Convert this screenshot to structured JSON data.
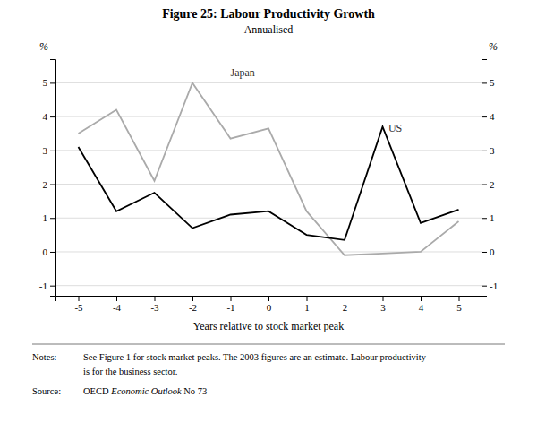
{
  "chart_data": {
    "type": "line",
    "title": "Figure 25: Labour Productivity Growth",
    "subtitle": "Annualised",
    "xlabel": "Years relative to stock market peak",
    "ylabel": "%",
    "y2label": "%",
    "x": [
      -5,
      -4,
      -3,
      -2,
      -1,
      0,
      1,
      2,
      3,
      4,
      5
    ],
    "series": [
      {
        "color": "#aaaaaa",
        "values": [
          3.5,
          4.2,
          2.1,
          5.0,
          3.35,
          3.65,
          1.2,
          -0.1,
          -0.05,
          0.0,
          0.9
        ]
      },
      {
        "color": "#000000",
        "values": [
          3.1,
          1.2,
          1.75,
          0.7,
          1.1,
          1.2,
          0.5,
          0.35,
          3.7,
          0.85,
          1.25
        ]
      }
    ],
    "annotations": [
      {
        "text": "Japan",
        "x": -1.0,
        "y": 5.2
      },
      {
        "text": "US",
        "x": 3.15,
        "y": 3.55
      }
    ],
    "xlim": [
      -5.6,
      5.6
    ],
    "xticks": [
      -5,
      -4,
      -3,
      -2,
      -1,
      0,
      1,
      2,
      3,
      4,
      5
    ],
    "ylim": [
      -1.3,
      5.7
    ],
    "yticks": [
      -1,
      0,
      1,
      2,
      3,
      4,
      5
    ],
    "y2lim": [
      -1.3,
      5.7
    ],
    "y2ticks": [
      -1,
      0,
      1,
      2,
      3,
      4,
      5
    ],
    "grid": true,
    "notes_label": "Notes:",
    "notes": [
      "See Figure 1 for stock market peaks. The 2003 figures are an estimate. Labour productivity",
      "is for the business sector."
    ],
    "source_label": "Source:",
    "source": [
      "OECD ",
      "Economic Outlook",
      " No 73"
    ]
  }
}
